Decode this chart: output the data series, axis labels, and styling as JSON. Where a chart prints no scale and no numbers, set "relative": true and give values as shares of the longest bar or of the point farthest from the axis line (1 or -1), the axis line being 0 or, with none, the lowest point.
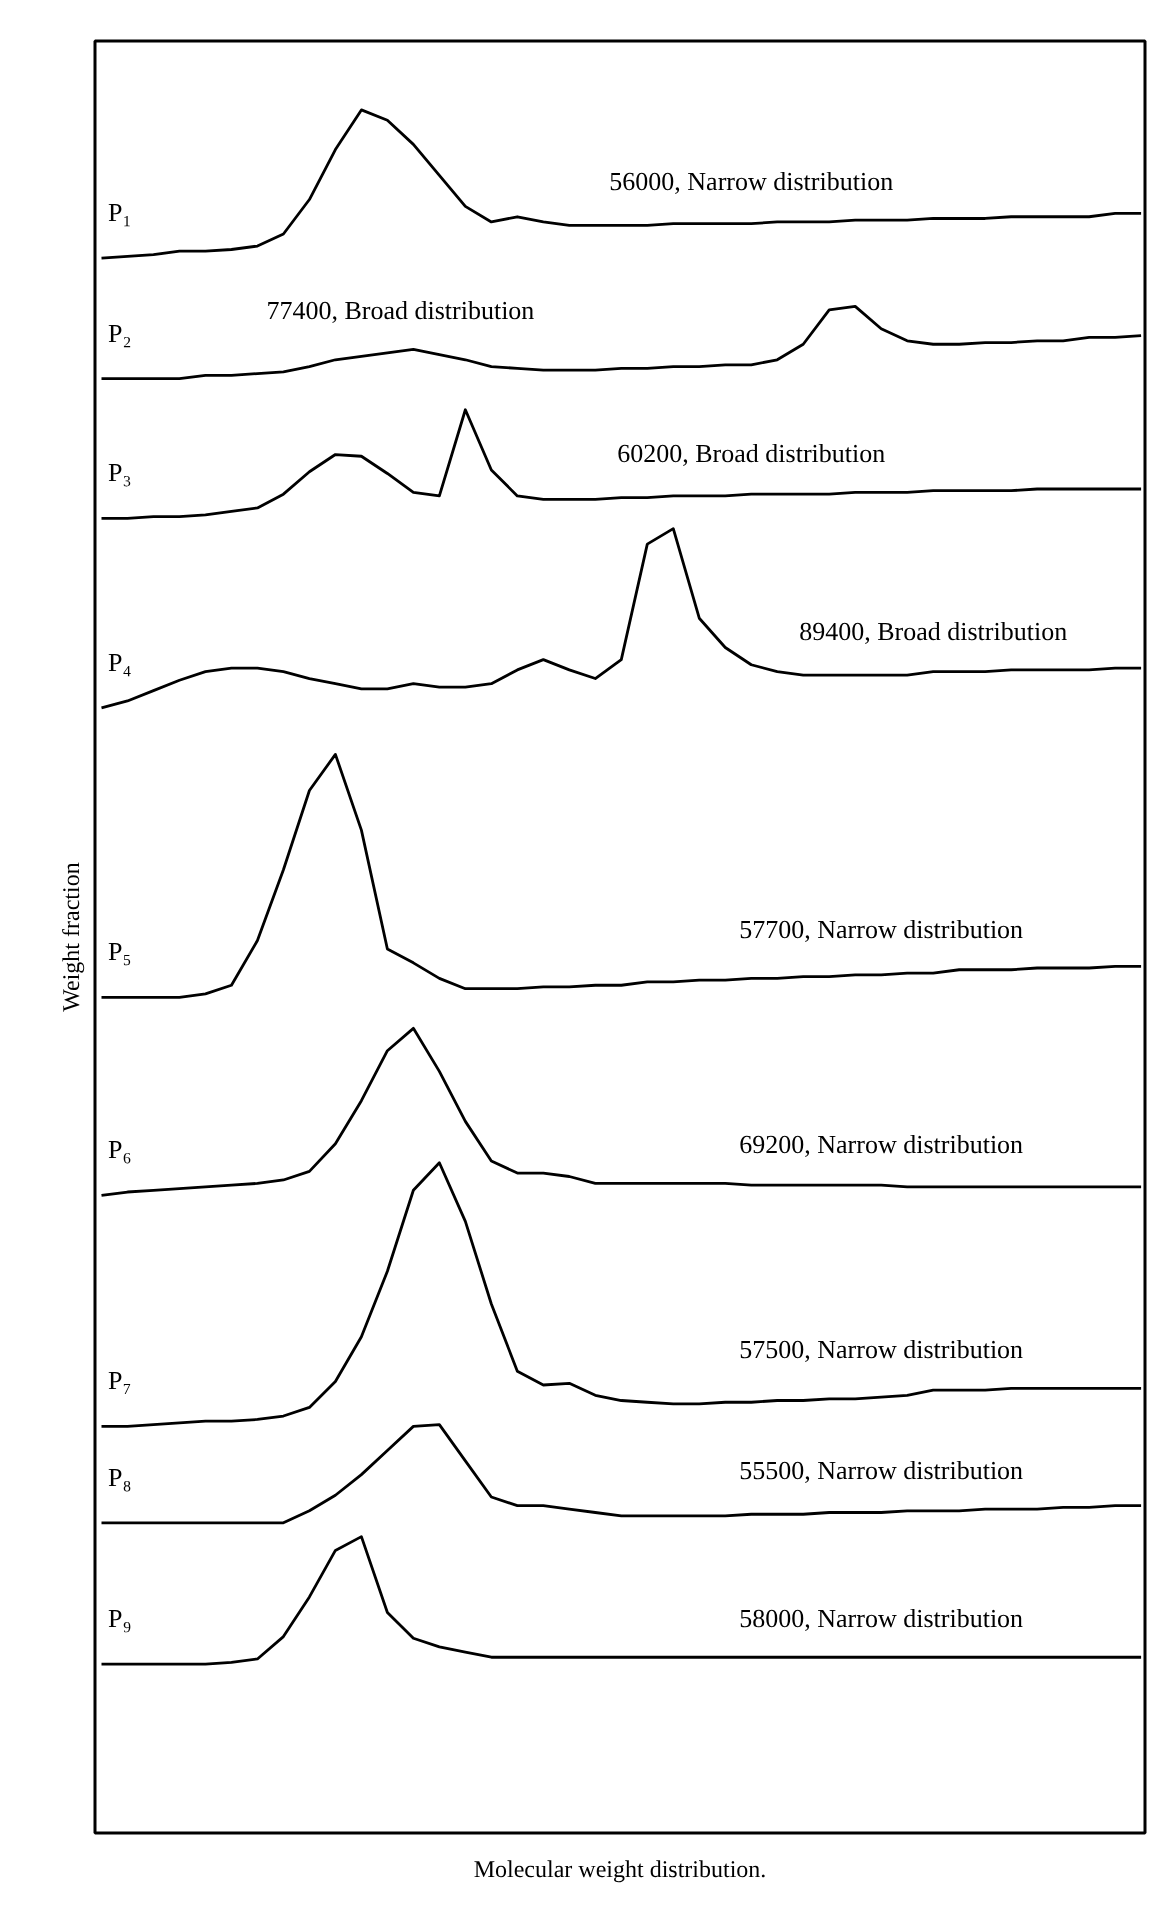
{
  "chart_data": {
    "type": "line",
    "relative": true,
    "xlabel": "Molecular weight distribution.",
    "ylabel": "Weight fraction",
    "categories": [
      null,
      null,
      null,
      null,
      null,
      null,
      null,
      null,
      null,
      null,
      null,
      null,
      null,
      null,
      null,
      null,
      null,
      null,
      null,
      null,
      null,
      null,
      null,
      null,
      null,
      null,
      null,
      null,
      null,
      null,
      null,
      null,
      null,
      null,
      null,
      null,
      null,
      null,
      null,
      null,
      null
    ],
    "line_style": "solid",
    "grid": false,
    "series": [
      {
        "name": "P₁",
        "color": "#000000",
        "values": [
          0.914,
          0.915,
          0.916,
          0.918,
          0.918,
          0.919,
          0.921,
          0.928,
          0.948,
          0.977,
          1.0,
          0.994,
          0.98,
          0.962,
          0.944,
          0.935,
          0.938,
          0.935,
          0.933,
          0.933,
          0.933,
          0.933,
          0.934,
          0.934,
          0.934,
          0.934,
          0.935,
          0.935,
          0.935,
          0.936,
          0.936,
          0.936,
          0.937,
          0.937,
          0.937,
          0.938,
          0.938,
          0.938,
          0.938,
          0.94,
          0.94
        ]
      },
      {
        "name": "P₂",
        "color": "#000000",
        "values": [
          0.844,
          0.844,
          0.844,
          0.844,
          0.846,
          0.846,
          0.847,
          0.848,
          0.851,
          0.855,
          0.857,
          0.859,
          0.861,
          0.858,
          0.855,
          0.851,
          0.85,
          0.849,
          0.849,
          0.849,
          0.85,
          0.85,
          0.851,
          0.851,
          0.852,
          0.852,
          0.855,
          0.864,
          0.884,
          0.886,
          0.873,
          0.866,
          0.864,
          0.864,
          0.865,
          0.865,
          0.866,
          0.866,
          0.868,
          0.868,
          0.869
        ]
      },
      {
        "name": "P₃",
        "color": "#000000",
        "values": [
          0.763,
          0.763,
          0.764,
          0.764,
          0.765,
          0.767,
          0.769,
          0.777,
          0.79,
          0.8,
          0.799,
          0.789,
          0.778,
          0.776,
          0.826,
          0.791,
          0.776,
          0.774,
          0.774,
          0.774,
          0.775,
          0.775,
          0.776,
          0.776,
          0.776,
          0.777,
          0.777,
          0.777,
          0.777,
          0.778,
          0.778,
          0.778,
          0.779,
          0.779,
          0.779,
          0.779,
          0.78,
          0.78,
          0.78,
          0.78,
          0.78
        ]
      },
      {
        "name": "P₄",
        "color": "#000000",
        "values": [
          0.653,
          0.657,
          0.663,
          0.669,
          0.674,
          0.676,
          0.676,
          0.674,
          0.67,
          0.667,
          0.664,
          0.664,
          0.667,
          0.665,
          0.665,
          0.667,
          0.675,
          0.681,
          0.675,
          0.67,
          0.681,
          0.748,
          0.757,
          0.705,
          0.688,
          0.678,
          0.674,
          0.672,
          0.672,
          0.672,
          0.672,
          0.672,
          0.674,
          0.674,
          0.674,
          0.675,
          0.675,
          0.675,
          0.675,
          0.676,
          0.676
        ]
      },
      {
        "name": "P₅",
        "color": "#000000",
        "values": [
          0.485,
          0.485,
          0.485,
          0.485,
          0.487,
          0.492,
          0.518,
          0.559,
          0.605,
          0.626,
          0.582,
          0.513,
          0.505,
          0.496,
          0.49,
          0.49,
          0.49,
          0.491,
          0.491,
          0.492,
          0.492,
          0.494,
          0.494,
          0.495,
          0.495,
          0.496,
          0.496,
          0.497,
          0.497,
          0.498,
          0.498,
          0.499,
          0.499,
          0.501,
          0.501,
          0.501,
          0.502,
          0.502,
          0.502,
          0.503,
          0.503
        ]
      },
      {
        "name": "P₆",
        "color": "#000000",
        "values": [
          0.37,
          0.372,
          0.373,
          0.374,
          0.375,
          0.376,
          0.377,
          0.379,
          0.384,
          0.4,
          0.425,
          0.454,
          0.467,
          0.442,
          0.413,
          0.39,
          0.383,
          0.383,
          0.381,
          0.377,
          0.377,
          0.377,
          0.377,
          0.377,
          0.377,
          0.376,
          0.376,
          0.376,
          0.376,
          0.376,
          0.376,
          0.375,
          0.375,
          0.375,
          0.375,
          0.375,
          0.375,
          0.375,
          0.375,
          0.375,
          0.375
        ]
      },
      {
        "name": "P₇",
        "color": "#000000",
        "values": [
          0.236,
          0.236,
          0.237,
          0.238,
          0.239,
          0.239,
          0.24,
          0.242,
          0.247,
          0.262,
          0.288,
          0.326,
          0.373,
          0.389,
          0.355,
          0.307,
          0.268,
          0.26,
          0.261,
          0.254,
          0.251,
          0.25,
          0.249,
          0.249,
          0.25,
          0.25,
          0.251,
          0.251,
          0.252,
          0.252,
          0.253,
          0.254,
          0.257,
          0.257,
          0.257,
          0.258,
          0.258,
          0.258,
          0.258,
          0.258,
          0.258
        ]
      },
      {
        "name": "P₈",
        "color": "#000000",
        "values": [
          0.18,
          0.18,
          0.18,
          0.18,
          0.18,
          0.18,
          0.18,
          0.18,
          0.187,
          0.196,
          0.208,
          0.222,
          0.236,
          0.237,
          0.216,
          0.195,
          0.19,
          0.19,
          0.188,
          0.186,
          0.184,
          0.184,
          0.184,
          0.184,
          0.184,
          0.185,
          0.185,
          0.185,
          0.186,
          0.186,
          0.186,
          0.187,
          0.187,
          0.187,
          0.188,
          0.188,
          0.188,
          0.189,
          0.189,
          0.19,
          0.19
        ]
      },
      {
        "name": "P₉",
        "color": "#000000",
        "values": [
          0.098,
          0.098,
          0.098,
          0.098,
          0.098,
          0.099,
          0.101,
          0.114,
          0.137,
          0.164,
          0.172,
          0.128,
          0.113,
          0.108,
          0.105,
          0.102,
          0.102,
          0.102,
          0.102,
          0.102,
          0.102,
          0.102,
          0.102,
          0.102,
          0.102,
          0.102,
          0.102,
          0.102,
          0.102,
          0.102,
          0.102,
          0.102,
          0.102,
          0.102,
          0.102,
          0.102,
          0.102,
          0.102,
          0.102,
          0.102,
          0.102
        ]
      }
    ],
    "annotations": [
      "56000, Narrow distribution",
      "77400, Broad distribution",
      "60200, Broad distribution",
      "89400, Broad distribution",
      "57700, Narrow distribution",
      "69200, Narrow distribution",
      "57500, Narrow distribution",
      "55500, Narrow distribution",
      "58000, Narrow distribution"
    ]
  }
}
